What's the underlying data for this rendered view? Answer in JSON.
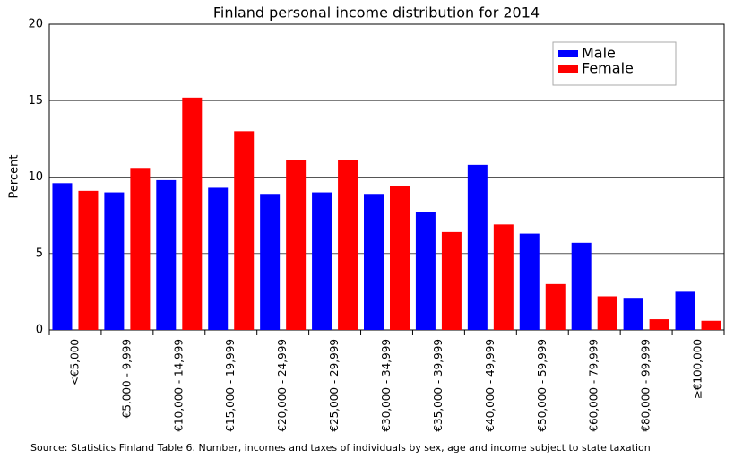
{
  "chart_data": {
    "type": "bar",
    "title": "Finland personal income distribution for 2014",
    "y_label": "Percent",
    "source": "Source: Statistics Finland Table 6. Number, incomes and taxes of individuals by sex, age and income subject to state taxation",
    "categories": [
      "<€5,000",
      "€5,000 - 9,999",
      "€10,000 - 14,999",
      "€15,000 - 19,999",
      "€20,000 - 24,999",
      "€25,000 - 29,999",
      "€30,000 - 34,999",
      "€35,000 - 39,999",
      "€40,000 - 49,999",
      "€50,000 - 59,999",
      "€60,000 - 79,999",
      "€80,000 - 99,999",
      "≥€100,000"
    ],
    "series": [
      {
        "name": "Male",
        "color": "#0000ff",
        "values": [
          9.6,
          9.0,
          9.8,
          9.3,
          8.9,
          9.0,
          8.9,
          7.7,
          10.8,
          6.3,
          5.7,
          2.1,
          2.5
        ]
      },
      {
        "name": "Female",
        "color": "#ff0000",
        "values": [
          9.1,
          10.6,
          15.2,
          13.0,
          11.1,
          11.1,
          9.4,
          6.4,
          6.9,
          3.0,
          2.2,
          0.7,
          0.6
        ]
      }
    ],
    "ylim": [
      0,
      20
    ],
    "yticks": [
      0,
      5,
      10,
      15,
      20
    ],
    "grid": true,
    "legend": "upper right"
  }
}
